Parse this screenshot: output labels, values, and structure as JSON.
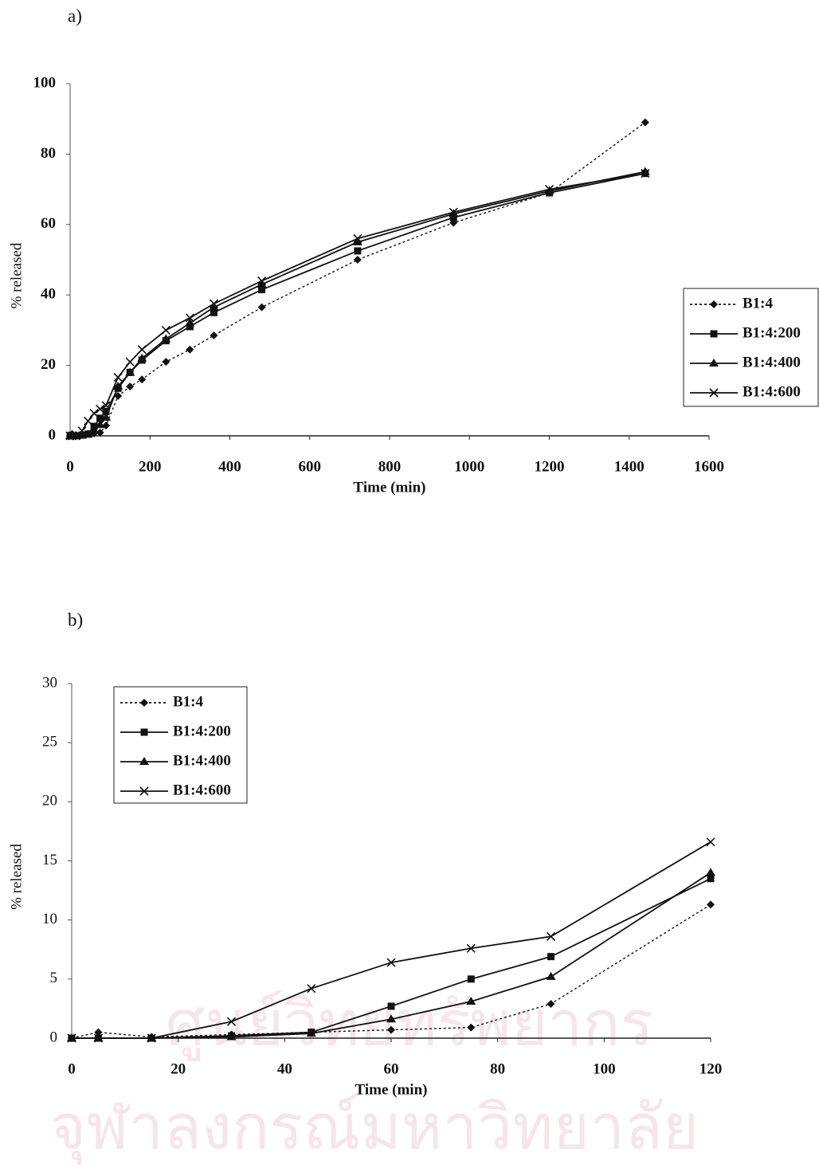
{
  "watermark": [
    "ศูนย์วิทยทรัพยากร",
    "จุฬาลงกรณ์มหาวิทยาลัย"
  ],
  "chart_data": [
    {
      "type": "line",
      "panel": "a)",
      "x_label": "Time (min)",
      "y_label": "% released",
      "x": [
        0,
        5,
        15,
        30,
        45,
        60,
        75,
        90,
        120,
        150,
        180,
        240,
        300,
        360,
        480,
        720,
        960,
        1200,
        1440
      ],
      "xlim": [
        0,
        1600
      ],
      "xticks": [
        0,
        200,
        400,
        600,
        800,
        1000,
        1200,
        1400,
        1600
      ],
      "ylim": [
        0,
        100
      ],
      "yticks": [
        0,
        20,
        40,
        60,
        80,
        100
      ],
      "legend": "right",
      "series": [
        {
          "name": "B1:4",
          "color": "#111111",
          "marker": "diamond",
          "dash": true,
          "values": [
            0,
            0.5,
            0.1,
            0.3,
            0.5,
            0.7,
            0.9,
            2.9,
            11.3,
            14,
            16,
            21,
            24.5,
            28.5,
            36.5,
            50,
            60.5,
            69,
            89
          ]
        },
        {
          "name": "B1:4:200",
          "color": "#111111",
          "marker": "square",
          "dash": false,
          "values": [
            0,
            0,
            0,
            0.2,
            0.5,
            2.7,
            5,
            6.9,
            13.5,
            18,
            21.5,
            27,
            31,
            35,
            41.5,
            52.5,
            62,
            69,
            74.5
          ]
        },
        {
          "name": "B1:4:400",
          "color": "#111111",
          "marker": "triangle",
          "dash": false,
          "values": [
            0,
            0,
            0,
            0.1,
            0.4,
            1.6,
            3.1,
            5.2,
            14,
            18,
            22,
            27.5,
            32,
            36.5,
            43,
            55,
            63,
            69.5,
            75
          ]
        },
        {
          "name": "B1:4:600",
          "color": "#111111",
          "marker": "x",
          "dash": false,
          "values": [
            0,
            0,
            0,
            1.4,
            4.2,
            6.4,
            7.6,
            8.6,
            16.6,
            21,
            24.5,
            30,
            33.5,
            37.5,
            44,
            56,
            63.5,
            70,
            74.5
          ]
        }
      ]
    },
    {
      "type": "line",
      "panel": "b)",
      "x_label": "Time (min)",
      "y_label": "% released",
      "x": [
        0,
        5,
        15,
        30,
        45,
        60,
        75,
        90,
        120
      ],
      "xlim": [
        0,
        120
      ],
      "xticks": [
        0,
        20,
        40,
        60,
        80,
        100,
        120
      ],
      "ylim": [
        0,
        30
      ],
      "yticks": [
        0,
        5,
        10,
        15,
        20,
        25,
        30
      ],
      "legend": "upper left",
      "series": [
        {
          "name": "B1:4",
          "color": "#111111",
          "marker": "diamond",
          "dash": true,
          "values": [
            0,
            0.5,
            0.1,
            0.3,
            0.5,
            0.7,
            0.9,
            2.9,
            11.3
          ]
        },
        {
          "name": "B1:4:200",
          "color": "#111111",
          "marker": "square",
          "dash": false,
          "values": [
            0,
            0,
            0,
            0.2,
            0.5,
            2.7,
            5,
            6.9,
            13.5
          ]
        },
        {
          "name": "B1:4:400",
          "color": "#111111",
          "marker": "triangle",
          "dash": false,
          "values": [
            0,
            0,
            0,
            0.1,
            0.4,
            1.6,
            3.1,
            5.2,
            14
          ]
        },
        {
          "name": "B1:4:600",
          "color": "#111111",
          "marker": "x",
          "dash": false,
          "values": [
            0,
            0,
            0,
            1.4,
            4.2,
            6.4,
            7.6,
            8.6,
            16.6
          ]
        }
      ]
    }
  ]
}
